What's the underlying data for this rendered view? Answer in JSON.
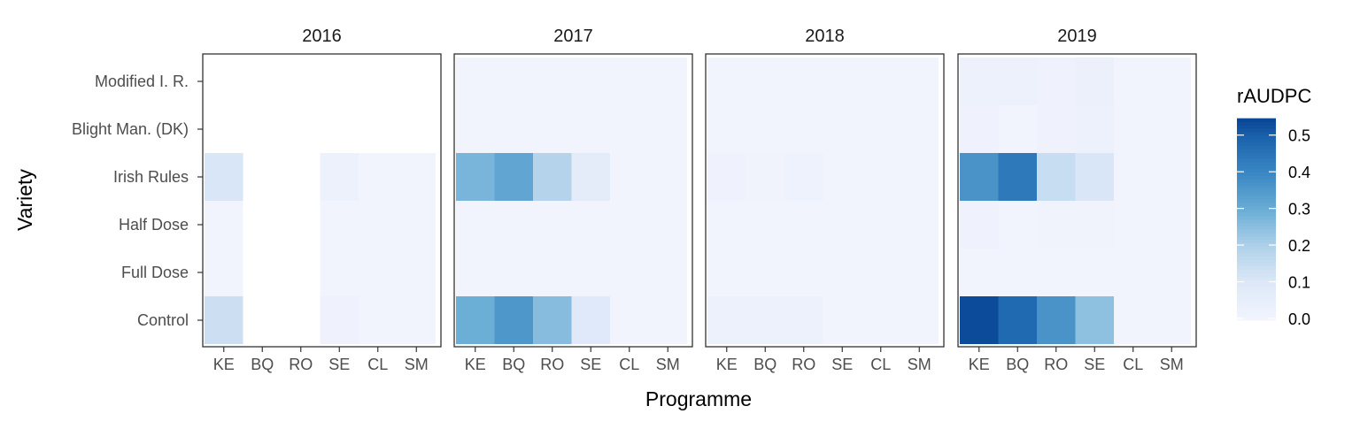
{
  "chart_data": {
    "type": "heatmap",
    "xlabel": "Programme",
    "ylabel": "Variety",
    "legend": {
      "title": "rAUDPC",
      "range": [
        0,
        0.55
      ],
      "ticks": [
        "0.0",
        "0.1",
        "0.2",
        "0.3",
        "0.4",
        "0.5"
      ],
      "tick_values": [
        0,
        0.1,
        0.2,
        0.3,
        0.4,
        0.5
      ],
      "placement": "right",
      "color_low": "#f3f5fd",
      "color_high": "#084594"
    },
    "x_categories": [
      "KE",
      "BQ",
      "RO",
      "SE",
      "CL",
      "SM"
    ],
    "y_categories": [
      "Control",
      "Full Dose",
      "Half Dose",
      "Irish Rules",
      "Blight Man. (DK)",
      "Modified I. R."
    ],
    "facets": [
      {
        "title": "2016",
        "values": [
          [
            0.14,
            null,
            null,
            0.02,
            0.01,
            0.01
          ],
          [
            0.01,
            null,
            null,
            0.01,
            0.01,
            0.01
          ],
          [
            0.01,
            null,
            null,
            0.01,
            0.01,
            0.01
          ],
          [
            0.11,
            null,
            null,
            0.03,
            0.01,
            0.01
          ],
          [
            null,
            null,
            null,
            null,
            null,
            null
          ],
          [
            null,
            null,
            null,
            null,
            null,
            null
          ]
        ]
      },
      {
        "title": "2017",
        "values": [
          [
            0.3,
            0.36,
            0.26,
            0.09,
            0.01,
            0.01
          ],
          [
            0.01,
            0.01,
            0.01,
            0.01,
            0.01,
            0.01
          ],
          [
            0.01,
            0.01,
            0.01,
            0.01,
            0.01,
            0.01
          ],
          [
            0.28,
            0.32,
            0.19,
            0.07,
            0.01,
            0.01
          ],
          [
            0.01,
            0.01,
            0.01,
            0.01,
            0.01,
            0.01
          ],
          [
            0.01,
            0.01,
            0.01,
            0.01,
            0.01,
            0.01
          ]
        ]
      },
      {
        "title": "2018",
        "values": [
          [
            0.03,
            0.03,
            0.03,
            0.01,
            0.01,
            0.01
          ],
          [
            0.01,
            0.01,
            0.01,
            0.01,
            0.01,
            0.01
          ],
          [
            0.01,
            0.01,
            0.01,
            0.01,
            0.01,
            0.01
          ],
          [
            0.02,
            0.015,
            0.025,
            0.01,
            0.01,
            0.01
          ],
          [
            0.01,
            0.01,
            0.01,
            0.01,
            0.01,
            0.01
          ],
          [
            0.01,
            0.01,
            0.01,
            0.01,
            0.01,
            0.01
          ]
        ]
      },
      {
        "title": "2019",
        "values": [
          [
            0.54,
            0.48,
            0.37,
            0.25,
            0.01,
            0.01
          ],
          [
            0.01,
            0.01,
            0.01,
            0.01,
            0.01,
            0.01
          ],
          [
            0.02,
            0.01,
            0.015,
            0.015,
            0.01,
            0.01
          ],
          [
            0.37,
            0.44,
            0.15,
            0.11,
            0.01,
            0.01
          ],
          [
            0.02,
            0.01,
            0.02,
            0.03,
            0.01,
            0.01
          ],
          [
            0.03,
            0.03,
            0.02,
            0.035,
            0.01,
            0.01
          ]
        ]
      }
    ]
  }
}
